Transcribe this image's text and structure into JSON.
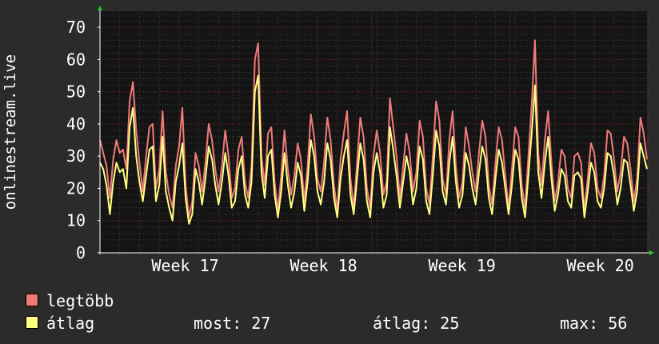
{
  "chart_data": {
    "type": "line",
    "ylabel": "onlinestream.live",
    "ylim": [
      0,
      75
    ],
    "yticks": [
      0,
      10,
      20,
      30,
      40,
      50,
      60,
      70
    ],
    "xticks": [
      {
        "label": "Week 17",
        "index": 21
      },
      {
        "label": "Week 18",
        "index": 63
      },
      {
        "label": "Week 19",
        "index": 105
      },
      {
        "label": "Week 20",
        "index": 147
      }
    ],
    "grid": true,
    "colors": {
      "background": "#2b2b2b",
      "canvas": "#141414",
      "grid_minor": "#3a3a3a",
      "grid_major": "#7a2a2a",
      "axis": "#ffffff",
      "max_series": "#f07a7a",
      "avg_series": "#ffff80"
    },
    "series": [
      {
        "name": "legtöbb",
        "color": "#f07a7a",
        "values": [
          35,
          31,
          27,
          17,
          29,
          35,
          31,
          32,
          26,
          47,
          53,
          38,
          28,
          19,
          30,
          39,
          40,
          20,
          26,
          44,
          25,
          18,
          14,
          27,
          33,
          45,
          21,
          11,
          16,
          31,
          27,
          19,
          28,
          40,
          35,
          26,
          19,
          27,
          38,
          30,
          17,
          20,
          32,
          36,
          22,
          17,
          27,
          60,
          65,
          30,
          21,
          37,
          39,
          22,
          13,
          24,
          38,
          26,
          18,
          24,
          34,
          29,
          16,
          27,
          43,
          36,
          23,
          19,
          28,
          42,
          35,
          21,
          13,
          29,
          37,
          44,
          23,
          14,
          28,
          42,
          36,
          20,
          14,
          30,
          38,
          31,
          18,
          22,
          48,
          39,
          30,
          17,
          27,
          37,
          31,
          19,
          25,
          41,
          36,
          20,
          15,
          30,
          47,
          41,
          23,
          18,
          35,
          44,
          27,
          17,
          22,
          39,
          33,
          25,
          19,
          31,
          41,
          36,
          21,
          15,
          28,
          39,
          35,
          24,
          14,
          26,
          39,
          36,
          21,
          14,
          30,
          46,
          66,
          31,
          21,
          35,
          44,
          28,
          16,
          22,
          32,
          30,
          20,
          17,
          30,
          31,
          28,
          13,
          23,
          34,
          31,
          20,
          17,
          24,
          38,
          37,
          29,
          19,
          25,
          36,
          34,
          26,
          16,
          23,
          42,
          37,
          29
        ]
      },
      {
        "name": "átlag",
        "color": "#ffff80",
        "values": [
          28,
          26,
          21,
          12,
          22,
          28,
          25,
          26,
          20,
          39,
          45,
          30,
          22,
          16,
          24,
          32,
          33,
          16,
          21,
          36,
          19,
          14,
          10,
          22,
          27,
          34,
          17,
          9,
          12,
          26,
          22,
          15,
          23,
          33,
          29,
          21,
          15,
          22,
          31,
          24,
          14,
          16,
          26,
          30,
          18,
          14,
          22,
          50,
          55,
          25,
          17,
          30,
          32,
          18,
          11,
          19,
          31,
          21,
          14,
          19,
          28,
          24,
          13,
          22,
          35,
          30,
          19,
          15,
          22,
          34,
          29,
          17,
          11,
          23,
          30,
          35,
          18,
          12,
          23,
          34,
          29,
          16,
          11,
          25,
          31,
          25,
          14,
          18,
          39,
          32,
          24,
          14,
          22,
          30,
          25,
          15,
          20,
          33,
          29,
          16,
          12,
          24,
          38,
          33,
          19,
          15,
          28,
          36,
          22,
          14,
          18,
          31,
          27,
          20,
          15,
          25,
          33,
          29,
          17,
          12,
          23,
          32,
          28,
          20,
          12,
          21,
          32,
          29,
          17,
          11,
          24,
          37,
          52,
          25,
          17,
          28,
          36,
          23,
          13,
          18,
          26,
          24,
          16,
          14,
          24,
          25,
          23,
          11,
          19,
          28,
          25,
          16,
          14,
          20,
          31,
          30,
          24,
          15,
          20,
          29,
          28,
          21,
          13,
          19,
          34,
          30,
          26
        ]
      }
    ]
  },
  "legend": {
    "max_label": "legtöbb",
    "avg_label": "átlag",
    "now_label": "most:",
    "now_value": "27",
    "avg_stat_label": "átlag:",
    "avg_stat_value": "25",
    "max_stat_label": "max:",
    "max_stat_value": "56"
  }
}
